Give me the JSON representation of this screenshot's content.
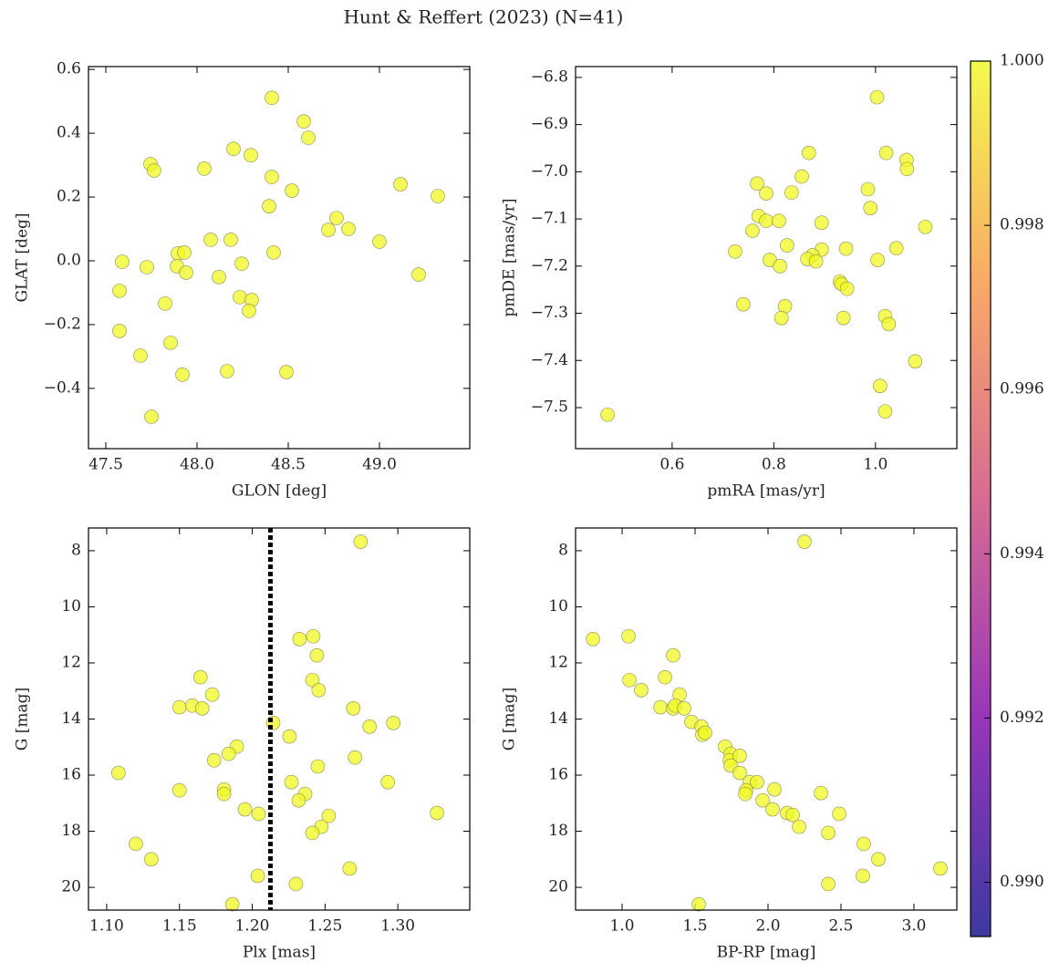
{
  "title": "Hunt & Reffert (2023) (N=41)",
  "chart_data": [
    {
      "type": "scatter",
      "xlabel": "GLON [deg]",
      "ylabel": "GLAT [deg]",
      "color": "#f0f921",
      "x": [
        48.41,
        48.585,
        48.61,
        48.2,
        48.295,
        47.745,
        47.765,
        48.04,
        48.41,
        49.115,
        49.32,
        48.52,
        48.395,
        48.765,
        48.72,
        48.83,
        48.075,
        48.185,
        49.0,
        48.42,
        47.895,
        47.93,
        47.59,
        48.245,
        47.725,
        47.89,
        47.94,
        48.12,
        49.215,
        47.575,
        48.235,
        48.3,
        47.825,
        48.285,
        47.575,
        47.855,
        47.69,
        48.165,
        47.92,
        48.49,
        47.75
      ],
      "y": [
        0.511,
        0.437,
        0.386,
        0.351,
        0.331,
        0.303,
        0.283,
        0.289,
        0.263,
        0.24,
        0.203,
        0.22,
        0.171,
        0.134,
        0.097,
        0.1,
        0.066,
        0.066,
        0.06,
        0.026,
        0.023,
        0.026,
        -0.003,
        -0.009,
        -0.02,
        -0.017,
        -0.037,
        -0.051,
        -0.043,
        -0.094,
        -0.114,
        -0.123,
        -0.134,
        -0.157,
        -0.22,
        -0.257,
        -0.297,
        -0.346,
        -0.357,
        -0.349,
        -0.489
      ],
      "xlim": [
        47.405,
        49.495
      ],
      "ylim": [
        -0.589,
        0.609
      ],
      "xticks": [
        47.5,
        {
          "value": 48,
          "label": "48.0"
        },
        48.5,
        {
          "value": 49,
          "label": "49.0"
        }
      ],
      "yticks": [
        {
          "value": -0.4,
          "label": "−0.4"
        },
        {
          "value": -0.2,
          "label": "−0.2"
        },
        {
          "value": 0,
          "label": "0.0"
        },
        0.2,
        0.4,
        0.6
      ]
    },
    {
      "type": "scatter",
      "xlabel": "pmRA [mas/yr]",
      "ylabel": "pmDE [mas/yr]",
      "color": "#f0f921",
      "x": [
        1.003,
        1.021,
        0.869,
        1.061,
        1.062,
        0.855,
        0.767,
        0.985,
        0.835,
        0.785,
        0.99,
        0.77,
        0.785,
        0.81,
        0.894,
        1.098,
        0.758,
        0.826,
        1.041,
        0.942,
        0.724,
        0.894,
        0.876,
        0.866,
        0.792,
        0.883,
        1.004,
        0.812,
        0.93,
        0.933,
        0.944,
        0.822,
        0.74,
        1.019,
        0.937,
        0.815,
        1.026,
        1.078,
        1.009,
        1.019,
        0.473
      ],
      "y": [
        -6.842,
        -6.96,
        -6.96,
        -6.975,
        -6.994,
        -7.01,
        -7.025,
        -7.037,
        -7.044,
        -7.046,
        -7.077,
        -7.094,
        -7.104,
        -7.104,
        -7.108,
        -7.117,
        -7.125,
        -7.156,
        -7.162,
        -7.163,
        -7.169,
        -7.165,
        -7.177,
        -7.185,
        -7.187,
        -7.19,
        -7.187,
        -7.2,
        -7.233,
        -7.238,
        -7.248,
        -7.285,
        -7.281,
        -7.306,
        -7.31,
        -7.31,
        -7.323,
        -7.402,
        -7.454,
        -7.508,
        -7.515
      ],
      "xlim": [
        0.41,
        1.16
      ],
      "ylim": [
        -7.587,
        -6.777
      ],
      "xticks": [
        0.6,
        0.8,
        {
          "value": 1,
          "label": "1.0"
        }
      ],
      "yticks": [
        {
          "value": -7.5,
          "label": "−7.5"
        },
        {
          "value": -7.4,
          "label": "−7.4"
        },
        {
          "value": -7.3,
          "label": "−7.3"
        },
        {
          "value": -7.2,
          "label": "−7.2"
        },
        {
          "value": -7.1,
          "label": "−7.1"
        },
        {
          "value": -7,
          "label": "−7.0"
        },
        {
          "value": -6.9,
          "label": "−6.9"
        },
        {
          "value": -6.8,
          "label": "−6.8"
        }
      ]
    },
    {
      "type": "scatter",
      "xlabel": "Plx [mas]",
      "ylabel": "G [mag]",
      "color": "#f0f921",
      "vline": {
        "value": 1.2125,
        "color": "#000000"
      },
      "x": [
        1.2744,
        1.2419,
        1.2325,
        1.2444,
        1.1644,
        1.2413,
        1.1725,
        1.2456,
        1.15,
        1.1588,
        1.1656,
        1.2694,
        1.2969,
        1.2806,
        1.2144,
        1.2256,
        1.1894,
        1.1838,
        1.1738,
        1.2706,
        1.245,
        1.1081,
        1.2269,
        1.2931,
        1.15,
        1.1806,
        1.1806,
        1.2363,
        1.2319,
        1.195,
        1.2044,
        1.3269,
        1.2525,
        1.2475,
        1.2413,
        1.12,
        1.1306,
        1.2669,
        1.2038,
        1.23,
        1.1863
      ],
      "y": [
        7.68,
        11.05,
        11.15,
        11.73,
        12.51,
        12.61,
        13.13,
        12.97,
        13.58,
        13.52,
        13.62,
        13.62,
        14.14,
        14.27,
        14.14,
        14.62,
        14.98,
        15.24,
        15.47,
        15.37,
        15.69,
        15.92,
        16.25,
        16.25,
        16.54,
        16.51,
        16.67,
        16.67,
        16.9,
        17.22,
        17.38,
        17.35,
        17.45,
        17.84,
        18.06,
        18.45,
        19.0,
        19.33,
        19.59,
        19.88,
        20.6
      ],
      "xlim": [
        1.0875,
        1.3494
      ],
      "ylim": [
        20.81,
        7.19
      ],
      "xticks": [
        {
          "value": 1.1,
          "label": "1.10"
        },
        1.15,
        {
          "value": 1.2,
          "label": "1.20"
        },
        1.25,
        {
          "value": 1.3,
          "label": "1.30"
        }
      ],
      "yticks": [
        8,
        10,
        12,
        14,
        16,
        18,
        20
      ]
    },
    {
      "type": "scatter",
      "xlabel": "BP-RP [mag]",
      "ylabel": "G [mag]",
      "color": "#f0f921",
      "x": [
        2.25,
        0.8,
        1.044,
        1.35,
        1.05,
        1.294,
        1.131,
        1.394,
        1.263,
        1.35,
        1.363,
        1.425,
        1.475,
        1.544,
        1.55,
        1.706,
        1.744,
        1.738,
        1.806,
        1.744,
        1.806,
        1.875,
        1.925,
        2.044,
        1.85,
        1.844,
        2.363,
        1.963,
        2.031,
        2.131,
        2.169,
        2.488,
        2.213,
        2.413,
        2.656,
        2.756,
        3.181,
        2.65,
        2.413,
        1.525,
        1.569
      ],
      "y": [
        7.68,
        11.15,
        11.05,
        11.73,
        12.61,
        12.51,
        12.97,
        13.13,
        13.58,
        13.62,
        13.52,
        13.62,
        14.1,
        14.27,
        14.56,
        14.98,
        15.24,
        15.47,
        15.31,
        15.66,
        15.92,
        16.25,
        16.25,
        16.51,
        16.54,
        16.67,
        16.64,
        16.9,
        17.22,
        17.35,
        17.42,
        17.38,
        17.84,
        18.06,
        18.45,
        19.0,
        19.33,
        19.59,
        19.88,
        20.6,
        14.49
      ],
      "xlim": [
        0.681,
        3.294
      ],
      "ylim": [
        20.81,
        7.19
      ],
      "xticks": [
        {
          "value": 1,
          "label": "1.0"
        },
        1.5,
        {
          "value": 2,
          "label": "2.0"
        },
        2.5,
        {
          "value": 3,
          "label": "3.0"
        }
      ],
      "yticks": [
        8,
        10,
        12,
        14,
        16,
        18,
        20
      ]
    }
  ],
  "colorbar": {
    "colormap": "plasma",
    "lim": [
      0.98934,
      1.0
    ],
    "ticks": [
      {
        "value": 0.99,
        "label": "0.990"
      },
      0.992,
      0.994,
      0.996,
      0.998,
      {
        "value": 1,
        "label": "1.000"
      }
    ]
  }
}
